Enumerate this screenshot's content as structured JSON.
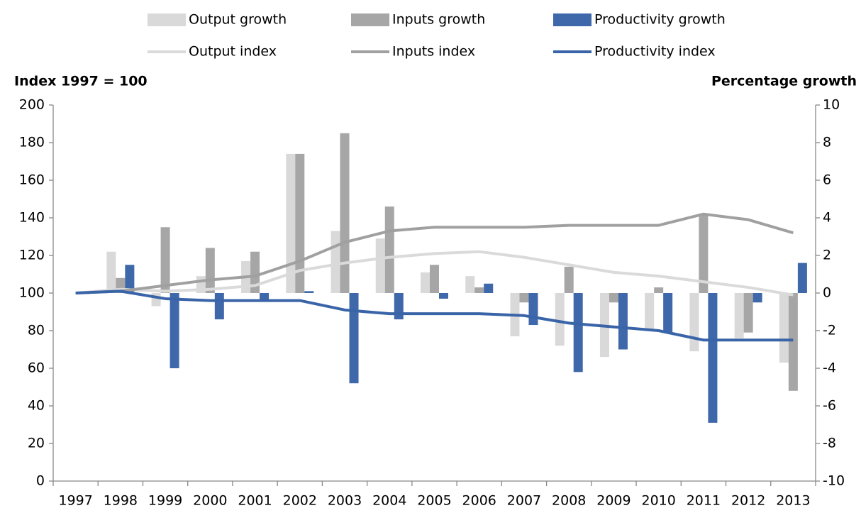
{
  "chart_data": {
    "type": "combo",
    "y_label": "Index 1997 = 100",
    "y2_label": "Percentage growth",
    "categories": [
      "1997",
      "1998",
      "1999",
      "2000",
      "2001",
      "2002",
      "2003",
      "2004",
      "2005",
      "2006",
      "2007",
      "2008",
      "2009",
      "2010",
      "2011",
      "2012",
      "2013"
    ],
    "ylim": [
      0,
      200
    ],
    "yticks": [
      0,
      20,
      40,
      60,
      80,
      100,
      120,
      140,
      160,
      180,
      200
    ],
    "y2lim": [
      -10,
      10
    ],
    "y2ticks": [
      -10,
      -8,
      -6,
      -4,
      -2,
      0,
      2,
      4,
      6,
      8,
      10
    ],
    "grid": false,
    "series": [
      {
        "name": "Output growth",
        "type": "bar",
        "axis": "y2",
        "color": "#d9d9d9",
        "values": [
          null,
          2.2,
          -0.7,
          0.9,
          1.7,
          7.4,
          3.3,
          2.9,
          1.1,
          0.9,
          -2.3,
          -2.8,
          -3.4,
          -1.9,
          -3.1,
          -2.4,
          -3.7
        ]
      },
      {
        "name": "Inputs growth",
        "type": "bar",
        "axis": "y2",
        "color": "#a6a6a6",
        "values": [
          null,
          0.8,
          3.5,
          2.4,
          2.2,
          7.4,
          8.5,
          4.6,
          1.5,
          0.3,
          -0.5,
          1.4,
          -0.5,
          0.3,
          4.2,
          -2.1,
          -5.2
        ]
      },
      {
        "name": "Productivity growth",
        "type": "bar",
        "axis": "y2",
        "color": "#3e68aa",
        "values": [
          null,
          1.5,
          -4.0,
          -1.4,
          -0.4,
          0.1,
          -4.8,
          -1.4,
          -0.3,
          0.5,
          -1.7,
          -4.2,
          -3.0,
          -2.1,
          -6.9,
          -0.5,
          1.6
        ]
      },
      {
        "name": "Output index",
        "type": "line",
        "axis": "y",
        "color": "#dadada",
        "values": [
          100,
          102,
          101,
          102,
          104,
          112,
          116,
          119,
          121,
          122,
          119,
          115,
          111,
          109,
          106,
          103,
          99
        ]
      },
      {
        "name": "Inputs index",
        "type": "line",
        "axis": "y",
        "color": "#a0a0a0",
        "values": [
          100,
          101,
          104,
          107,
          109,
          117,
          127,
          133,
          135,
          135,
          135,
          136,
          136,
          136,
          142,
          139,
          132
        ]
      },
      {
        "name": "Productivity index",
        "type": "line",
        "axis": "y",
        "color": "#3a64a8",
        "values": [
          100,
          101,
          97,
          96,
          96,
          96,
          91,
          89,
          89,
          89,
          88,
          84,
          82,
          80,
          75,
          75,
          75
        ]
      }
    ]
  }
}
